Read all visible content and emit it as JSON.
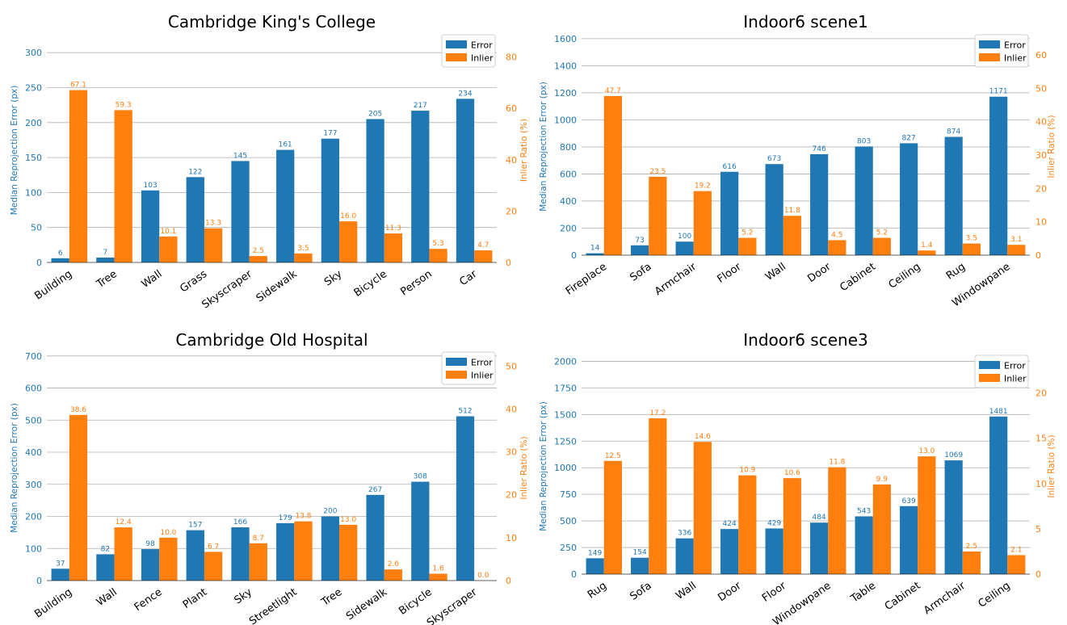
{
  "colors": {
    "error": "#1f77b4",
    "inlier": "#ff7f0e",
    "grid": "#b0b0b0",
    "text": "#000000"
  },
  "chart_data": [
    {
      "type": "bar",
      "title": "Cambridge King's College",
      "ylabel": "Median Reprojection Error (px)",
      "y2label": "Inlier Ratio (%)",
      "categories": [
        "Building",
        "Tree",
        "Wall",
        "Grass",
        "Skyscraper",
        "Sidewalk",
        "Sky",
        "Bicycle",
        "Person",
        "Car"
      ],
      "series": [
        {
          "name": "Error",
          "axis": "left",
          "values": [
            6,
            7,
            103,
            122,
            145,
            161,
            177,
            205,
            217,
            234
          ],
          "labels": [
            "6",
            "7",
            "103",
            "122",
            "145",
            "161",
            "177",
            "205",
            "217",
            "234"
          ]
        },
        {
          "name": "Inlier",
          "axis": "right",
          "values": [
            67.1,
            59.3,
            10.1,
            13.3,
            2.5,
            3.5,
            16.0,
            11.3,
            5.3,
            4.7
          ],
          "labels": [
            "67.1",
            "59.3",
            "10.1",
            "13.3",
            "2.5",
            "3.5",
            "16.0",
            "11.3",
            "5.3",
            "4.7"
          ]
        }
      ],
      "ylim": [
        0,
        321
      ],
      "yticks": [
        0,
        50,
        100,
        150,
        200,
        250,
        300
      ],
      "ytick_labels": [
        "0",
        "50",
        "100",
        "150",
        "200",
        "250",
        "300"
      ],
      "y2lim": [
        0,
        87.4
      ],
      "y2ticks": [
        0,
        20,
        40,
        60,
        80
      ],
      "y2tick_labels": [
        "0",
        "20",
        "40",
        "60",
        "80"
      ],
      "grid": true,
      "legend": "top-right"
    },
    {
      "type": "bar",
      "title": "Indoor6 scene1",
      "ylabel": "Median Reprojection Error (px)",
      "y2label": "Inlier Ratio (%)",
      "categories": [
        "Fireplace",
        "Sofa",
        "Armchair",
        "Floor",
        "Wall",
        "Door",
        "Cabinet",
        "Ceiling",
        "Rug",
        "Windowpane"
      ],
      "series": [
        {
          "name": "Error",
          "axis": "left",
          "values": [
            14,
            73,
            100,
            616,
            673,
            746,
            803,
            827,
            874,
            1171
          ],
          "labels": [
            "14",
            "73",
            "100",
            "616",
            "673",
            "746",
            "803",
            "827",
            "874",
            "1171"
          ]
        },
        {
          "name": "Inlier",
          "axis": "right",
          "values": [
            47.7,
            23.5,
            19.2,
            5.2,
            11.8,
            4.5,
            5.2,
            1.4,
            3.5,
            3.1
          ],
          "labels": [
            "47.7",
            "23.5",
            "19.2",
            "5.2",
            "11.8",
            "4.5",
            "5.2",
            "1.4",
            "3.5",
            "3.1"
          ]
        }
      ],
      "ylim": [
        0,
        1605
      ],
      "yticks": [
        0,
        200,
        400,
        600,
        800,
        1000,
        1200,
        1400,
        1600
      ],
      "ytick_labels": [
        "0",
        "200",
        "400",
        "600",
        "800",
        "1000",
        "1200",
        "1400",
        "1600"
      ],
      "y2lim": [
        0,
        65.1
      ],
      "y2ticks": [
        0,
        10,
        20,
        30,
        40,
        50,
        60
      ],
      "y2tick_labels": [
        "0",
        "10",
        "20",
        "30",
        "40",
        "50",
        "60"
      ],
      "grid": true,
      "legend": "top-right"
    },
    {
      "type": "bar",
      "title": "Cambridge Old Hospital",
      "ylabel": "Median Reprojection Error (px)",
      "y2label": "Inlier Ratio (%)",
      "categories": [
        "Building",
        "Wall",
        "Fence",
        "Plant",
        "Sky",
        "Streetlight",
        "Tree",
        "Sidewalk",
        "Bicycle",
        "Skyscraper"
      ],
      "series": [
        {
          "name": "Error",
          "axis": "left",
          "values": [
            37,
            82,
            98,
            157,
            166,
            179,
            200,
            267,
            308,
            512
          ],
          "labels": [
            "37",
            "82",
            "98",
            "157",
            "166",
            "179",
            "200",
            "267",
            "308",
            "512"
          ]
        },
        {
          "name": "Inlier",
          "axis": "right",
          "values": [
            38.6,
            12.4,
            10.0,
            6.7,
            8.7,
            13.8,
            13.0,
            2.6,
            1.6,
            0.0
          ],
          "labels": [
            "38.6",
            "12.4",
            "10.0",
            "6.7",
            "8.7",
            "13.8",
            "13.0",
            "2.6",
            "1.6",
            "0.0"
          ]
        }
      ],
      "ylim": [
        0,
        702
      ],
      "yticks": [
        0,
        100,
        200,
        300,
        400,
        500,
        600,
        700
      ],
      "ytick_labels": [
        "0",
        "100",
        "200",
        "300",
        "400",
        "500",
        "600",
        "700"
      ],
      "y2lim": [
        0,
        52.5
      ],
      "y2ticks": [
        0,
        10,
        20,
        30,
        40,
        50
      ],
      "y2tick_labels": [
        "0",
        "10",
        "20",
        "30",
        "40",
        "50"
      ],
      "grid": true,
      "legend": "top-right"
    },
    {
      "type": "bar",
      "title": "Indoor6 scene3",
      "ylabel": "Median Reprojection Error (px)",
      "y2label": "Inlier Ratio (%)",
      "categories": [
        "Rug",
        "Sofa",
        "Wall",
        "Door",
        "Floor",
        "Windowpane",
        "Table",
        "Cabinet",
        "Armchair",
        "Ceiling"
      ],
      "series": [
        {
          "name": "Error",
          "axis": "left",
          "values": [
            149,
            154,
            336,
            424,
            429,
            484,
            543,
            639,
            1069,
            1481
          ],
          "labels": [
            "149",
            "154",
            "336",
            "424",
            "429",
            "484",
            "543",
            "639",
            "1069",
            "1481"
          ]
        },
        {
          "name": "Inlier",
          "axis": "right",
          "values": [
            12.5,
            17.2,
            14.6,
            10.9,
            10.6,
            11.8,
            9.9,
            13.0,
            2.5,
            2.1
          ],
          "labels": [
            "12.5",
            "17.2",
            "14.6",
            "10.9",
            "10.6",
            "11.8",
            "9.9",
            "13.0",
            "2.5",
            "2.1"
          ]
        }
      ],
      "ylim": [
        0,
        2026
      ],
      "yticks": [
        0,
        250,
        500,
        750,
        1000,
        1250,
        1500,
        1750,
        2000
      ],
      "ytick_labels": [
        "0",
        "250",
        "500",
        "750",
        "1000",
        "1250",
        "1500",
        "1750",
        "2000"
      ],
      "y2lim": [
        0,
        23.8
      ],
      "y2ticks": [
        0,
        5,
        10,
        15,
        20
      ],
      "y2tick_labels": [
        "0",
        "5",
        "10",
        "15",
        "20"
      ],
      "grid": true,
      "legend": "top-right"
    }
  ]
}
